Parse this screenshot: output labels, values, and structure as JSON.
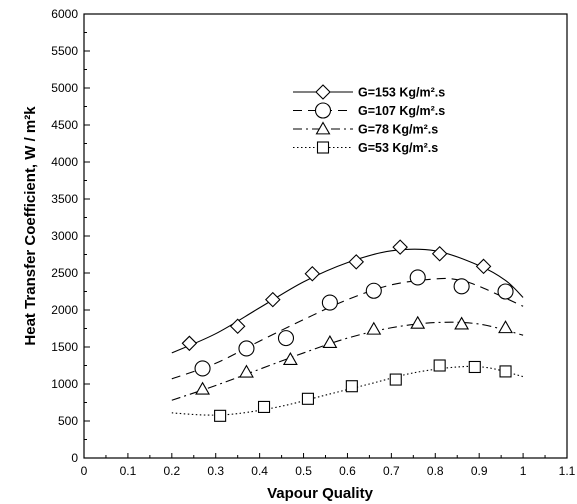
{
  "chart_data": {
    "type": "line",
    "title": "",
    "xlabel": "Vapour Quality",
    "ylabel": "Heat Transfer Coefficient, W / m²k",
    "xlim": [
      0,
      1.1
    ],
    "ylim": [
      0,
      6000
    ],
    "xticks": [
      "0",
      "0.1",
      "0.2",
      "0.3",
      "0.4",
      "0.5",
      "0.6",
      "0.7",
      "0.8",
      "0.9",
      "1",
      "1.1"
    ],
    "yticks": [
      "0",
      "500",
      "1000",
      "1500",
      "2000",
      "2500",
      "3000",
      "3500",
      "4000",
      "4500",
      "5000",
      "5500",
      "6000"
    ],
    "grid": false,
    "legend_position": "top-right",
    "series": [
      {
        "name": "G=153 Kg/m².s",
        "marker": "diamond",
        "line_style": "solid",
        "points": [
          [
            0.24,
            1550
          ],
          [
            0.35,
            1780
          ],
          [
            0.43,
            2140
          ],
          [
            0.52,
            2490
          ],
          [
            0.62,
            2650
          ],
          [
            0.72,
            2850
          ],
          [
            0.81,
            2760
          ],
          [
            0.91,
            2590
          ]
        ],
        "curve": [
          [
            0.2,
            1420
          ],
          [
            0.3,
            1680
          ],
          [
            0.4,
            2030
          ],
          [
            0.5,
            2380
          ],
          [
            0.6,
            2640
          ],
          [
            0.7,
            2800
          ],
          [
            0.8,
            2800
          ],
          [
            0.9,
            2600
          ],
          [
            0.96,
            2400
          ],
          [
            1.0,
            2170
          ]
        ]
      },
      {
        "name": "G=107 Kg/m².s",
        "marker": "circle",
        "line_style": "dashed",
        "points": [
          [
            0.27,
            1210
          ],
          [
            0.37,
            1480
          ],
          [
            0.46,
            1620
          ],
          [
            0.56,
            2100
          ],
          [
            0.66,
            2260
          ],
          [
            0.76,
            2440
          ],
          [
            0.86,
            2320
          ],
          [
            0.96,
            2250
          ]
        ],
        "curve": [
          [
            0.2,
            1070
          ],
          [
            0.3,
            1280
          ],
          [
            0.4,
            1580
          ],
          [
            0.5,
            1870
          ],
          [
            0.6,
            2140
          ],
          [
            0.7,
            2340
          ],
          [
            0.8,
            2420
          ],
          [
            0.85,
            2410
          ],
          [
            0.9,
            2320
          ],
          [
            1.0,
            2050
          ]
        ]
      },
      {
        "name": "G=78 Kg/m².s",
        "marker": "triangle",
        "line_style": "dashdot",
        "points": [
          [
            0.27,
            930
          ],
          [
            0.37,
            1160
          ],
          [
            0.47,
            1330
          ],
          [
            0.56,
            1560
          ],
          [
            0.66,
            1740
          ],
          [
            0.76,
            1820
          ],
          [
            0.86,
            1810
          ],
          [
            0.96,
            1760
          ]
        ],
        "curve": [
          [
            0.2,
            780
          ],
          [
            0.3,
            980
          ],
          [
            0.4,
            1200
          ],
          [
            0.5,
            1420
          ],
          [
            0.6,
            1620
          ],
          [
            0.7,
            1760
          ],
          [
            0.8,
            1830
          ],
          [
            0.9,
            1810
          ],
          [
            1.0,
            1660
          ]
        ]
      },
      {
        "name": "G=53 Kg/m².s",
        "marker": "square",
        "line_style": "dotted",
        "points": [
          [
            0.31,
            570
          ],
          [
            0.41,
            690
          ],
          [
            0.51,
            800
          ],
          [
            0.61,
            970
          ],
          [
            0.71,
            1060
          ],
          [
            0.81,
            1250
          ],
          [
            0.89,
            1230
          ],
          [
            0.96,
            1170
          ]
        ],
        "curve": [
          [
            0.2,
            610
          ],
          [
            0.28,
            580
          ],
          [
            0.35,
            600
          ],
          [
            0.45,
            700
          ],
          [
            0.55,
            850
          ],
          [
            0.65,
            1000
          ],
          [
            0.75,
            1150
          ],
          [
            0.85,
            1230
          ],
          [
            0.92,
            1220
          ],
          [
            1.0,
            1100
          ]
        ]
      }
    ]
  }
}
